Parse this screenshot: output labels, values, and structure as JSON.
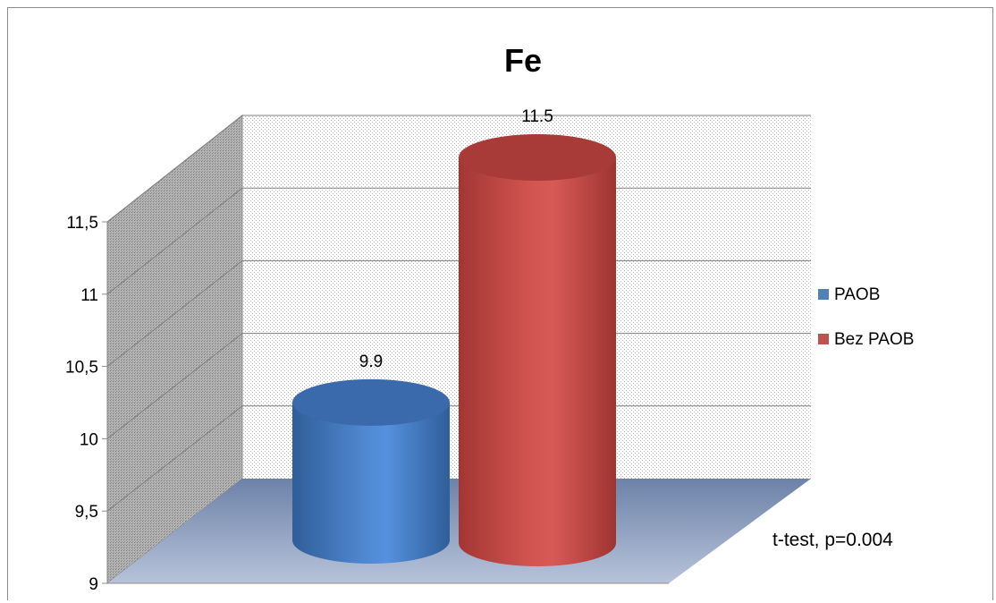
{
  "chart_data": {
    "type": "bar",
    "title": "Fe",
    "categories": [
      ""
    ],
    "series": [
      {
        "name": "PAOB",
        "values": [
          9.9
        ],
        "label": "9.9",
        "color": "#4f81bd"
      },
      {
        "name": "Bez PAOB",
        "values": [
          11.5
        ],
        "label": "11.5",
        "color": "#c0504d"
      }
    ],
    "ylim": [
      9,
      11.5
    ],
    "yticks": [
      "9",
      "9,5",
      "10",
      "10,5",
      "11",
      "11,5"
    ],
    "grid": true,
    "legend_position": "right",
    "annotation": "t-test, p=0.004",
    "style": "3d-cylinder"
  }
}
